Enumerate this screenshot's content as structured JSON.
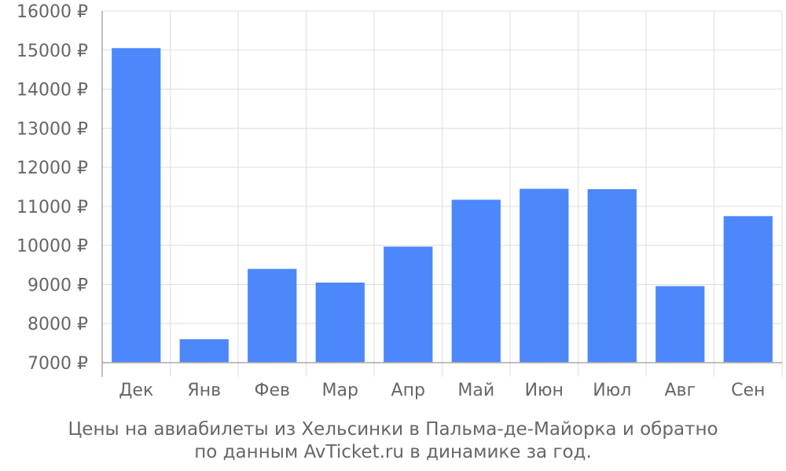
{
  "chart_data": {
    "type": "bar",
    "categories": [
      "Дек",
      "Янв",
      "Фев",
      "Мар",
      "Апр",
      "Май",
      "Июн",
      "Июл",
      "Авг",
      "Сен"
    ],
    "values": [
      15050,
      7600,
      9400,
      9050,
      9970,
      11170,
      11450,
      11440,
      8960,
      10750
    ],
    "ylim": [
      7000,
      16000
    ],
    "yticks": [
      7000,
      8000,
      9000,
      10000,
      11000,
      12000,
      13000,
      14000,
      15000,
      16000
    ],
    "ytick_labels": [
      "7000 ₽",
      "8000 ₽",
      "9000 ₽",
      "10000 ₽",
      "11000 ₽",
      "12000 ₽",
      "13000 ₽",
      "14000 ₽",
      "15000 ₽",
      "16000 ₽"
    ],
    "grid": true,
    "bar_color": "#4d88fb",
    "grid_color": "#dddddd"
  },
  "caption": {
    "line1": "Цены на авиабилеты из Хельсинки в Пальма-де-Майорка и обратно",
    "line2": "по данным AvTicket.ru в динамике за год."
  }
}
